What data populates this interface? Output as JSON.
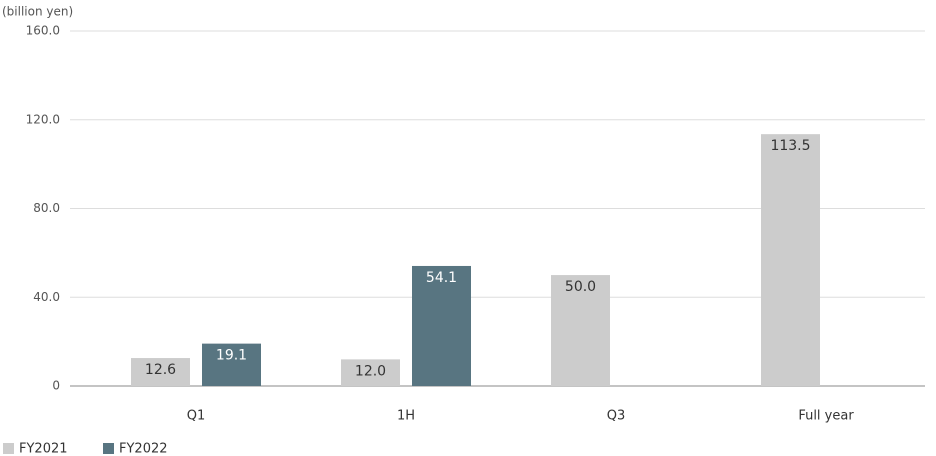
{
  "chart_data": {
    "type": "bar",
    "y_axis_label": "(billion yen)",
    "categories": [
      "Q1",
      "1H",
      "Q3",
      "Full year"
    ],
    "series": [
      {
        "name": "FY2021",
        "color": "#cccccc",
        "text_color": "#333333",
        "values": [
          12.6,
          12.0,
          50.0,
          113.5
        ],
        "value_labels": [
          "12.6",
          "12.0",
          "50.0",
          "113.5"
        ]
      },
      {
        "name": "FY2022",
        "color": "#587581",
        "text_color": "#ffffff",
        "values": [
          19.1,
          54.1,
          null,
          null
        ],
        "value_labels": [
          "19.1",
          "54.1",
          null,
          null
        ]
      }
    ],
    "ylim": [
      0,
      160
    ],
    "yticks": [
      0,
      {
        "value": 40,
        "label": "40.0"
      },
      {
        "value": 80,
        "label": "80.0"
      },
      {
        "value": 120,
        "label": "120.0"
      },
      {
        "value": 160,
        "label": "160.0"
      }
    ],
    "grid": true
  }
}
